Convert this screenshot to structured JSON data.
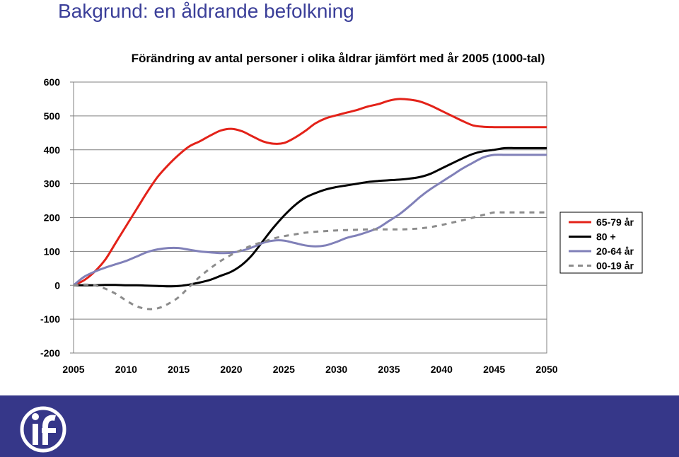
{
  "slide": {
    "title": "Bakgrund: en åldrande befolkning"
  },
  "colors": {
    "footer": "#363789",
    "title": "#3b3f99"
  },
  "footer": {
    "logo_icon": "if-logo-icon"
  },
  "chart_data": {
    "type": "line",
    "title": "Förändring av antal personer i olika åldrar jämfört med år 2005 (1000-tal)",
    "xlabel": "",
    "ylabel": "",
    "xlim": [
      2005,
      2050
    ],
    "ylim": [
      -200,
      600
    ],
    "x_ticks": [
      2005,
      2010,
      2015,
      2020,
      2025,
      2030,
      2035,
      2040,
      2045,
      2050
    ],
    "y_ticks": [
      600,
      500,
      400,
      300,
      200,
      100,
      0,
      -100,
      -200
    ],
    "grid": true,
    "legend_position": "right",
    "x": [
      2005,
      2006,
      2007,
      2008,
      2009,
      2010,
      2011,
      2012,
      2013,
      2014,
      2015,
      2016,
      2017,
      2018,
      2019,
      2020,
      2021,
      2022,
      2023,
      2024,
      2025,
      2026,
      2027,
      2028,
      2029,
      2030,
      2031,
      2032,
      2033,
      2034,
      2035,
      2036,
      2037,
      2038,
      2039,
      2040,
      2041,
      2042,
      2043,
      2044,
      2045,
      2046,
      2047,
      2048,
      2049,
      2050
    ],
    "series": [
      {
        "name": "65-79 år",
        "color": "#e32219",
        "dash": "solid",
        "values": [
          0,
          15,
          40,
          75,
          125,
          175,
          225,
          275,
          320,
          355,
          385,
          410,
          425,
          442,
          457,
          462,
          455,
          440,
          425,
          418,
          420,
          435,
          455,
          478,
          493,
          502,
          510,
          518,
          528,
          535,
          545,
          550,
          548,
          542,
          530,
          515,
          500,
          485,
          472,
          468,
          467,
          467,
          467,
          467,
          467,
          467
        ]
      },
      {
        "name": "80 +",
        "color": "#000000",
        "dash": "solid",
        "values": [
          0,
          0,
          0,
          1,
          1,
          0,
          0,
          -1,
          -2,
          -3,
          -2,
          2,
          8,
          16,
          28,
          40,
          60,
          90,
          130,
          170,
          205,
          235,
          258,
          272,
          283,
          290,
          295,
          300,
          305,
          308,
          310,
          312,
          315,
          320,
          330,
          345,
          360,
          375,
          388,
          396,
          400,
          405,
          405,
          405,
          405,
          405
        ]
      },
      {
        "name": "20-64 år",
        "color": "#8080b8",
        "dash": "solid",
        "values": [
          0,
          25,
          40,
          52,
          62,
          72,
          85,
          98,
          106,
          110,
          110,
          105,
          100,
          97,
          95,
          96,
          102,
          112,
          125,
          132,
          132,
          125,
          118,
          115,
          118,
          128,
          140,
          148,
          158,
          170,
          190,
          210,
          235,
          262,
          285,
          305,
          325,
          345,
          362,
          378,
          385,
          385,
          385,
          385,
          385,
          385
        ]
      },
      {
        "name": "00-19 år",
        "color": "#8c8c8c",
        "dash": "dashed",
        "values": [
          0,
          2,
          0,
          -10,
          -25,
          -45,
          -62,
          -70,
          -68,
          -55,
          -35,
          -5,
          25,
          50,
          72,
          90,
          105,
          118,
          128,
          138,
          145,
          150,
          155,
          158,
          160,
          162,
          163,
          164,
          165,
          165,
          165,
          165,
          166,
          168,
          172,
          178,
          185,
          192,
          200,
          208,
          215,
          215,
          215,
          215,
          215,
          215
        ]
      }
    ]
  }
}
